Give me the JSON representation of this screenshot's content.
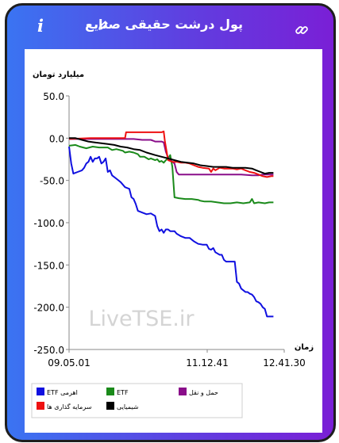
{
  "header": {
    "title": "پول درشت حقیقی صنایع",
    "info_icon": "i",
    "icons": [
      "info-icon",
      "pencil-icon",
      "link-icon"
    ]
  },
  "chart_data": {
    "type": "line",
    "ylabel": "میلیارد تومان",
    "xlabel": "زمان",
    "ylim": [
      -250,
      50
    ],
    "yticks": [
      "50.0",
      "0.0",
      "-50.0",
      "-100.0",
      "-150.0",
      "-200.0",
      "-250.0"
    ],
    "xticks": [
      "09.05.01",
      "11.12.41",
      "12.41.30"
    ],
    "x_range": [
      0,
      100
    ],
    "grid": false,
    "legend_position": "bottom",
    "watermark": "LiveTSE.ir",
    "series": [
      {
        "name": "ETF اهرمی",
        "color": "#1010e0",
        "values": [
          [
            0,
            -10
          ],
          [
            1,
            -30
          ],
          [
            2,
            -42
          ],
          [
            4,
            -40
          ],
          [
            6,
            -38
          ],
          [
            7,
            -35
          ],
          [
            8,
            -30
          ],
          [
            9,
            -28
          ],
          [
            10,
            -22
          ],
          [
            11,
            -28
          ],
          [
            12,
            -24
          ],
          [
            13,
            -24
          ],
          [
            14,
            -22
          ],
          [
            15,
            -30
          ],
          [
            16,
            -28
          ],
          [
            17,
            -24
          ],
          [
            18,
            -40
          ],
          [
            19,
            -38
          ],
          [
            20,
            -44
          ],
          [
            22,
            -48
          ],
          [
            24,
            -52
          ],
          [
            26,
            -58
          ],
          [
            28,
            -60
          ],
          [
            29,
            -70
          ],
          [
            30,
            -72
          ],
          [
            31,
            -78
          ],
          [
            32,
            -86
          ],
          [
            34,
            -88
          ],
          [
            36,
            -90
          ],
          [
            38,
            -89
          ],
          [
            40,
            -92
          ],
          [
            41,
            -104
          ],
          [
            42,
            -110
          ],
          [
            43,
            -108
          ],
          [
            44,
            -112
          ],
          [
            45,
            -108
          ],
          [
            46,
            -108
          ],
          [
            47,
            -110
          ],
          [
            49,
            -110
          ],
          [
            50,
            -113
          ],
          [
            52,
            -116
          ],
          [
            54,
            -118
          ],
          [
            56,
            -118
          ],
          [
            57,
            -120
          ],
          [
            58,
            -122
          ],
          [
            60,
            -125
          ],
          [
            62,
            -126
          ],
          [
            64,
            -126
          ],
          [
            65,
            -131
          ],
          [
            66,
            -132
          ],
          [
            67,
            -130
          ],
          [
            68,
            -135
          ],
          [
            70,
            -138
          ],
          [
            71,
            -138
          ],
          [
            72,
            -144
          ],
          [
            73,
            -146
          ],
          [
            76,
            -146
          ],
          [
            77,
            -146
          ],
          [
            78,
            -170
          ],
          [
            79,
            -172
          ],
          [
            80,
            -178
          ],
          [
            81,
            -180
          ],
          [
            82,
            -182
          ],
          [
            83,
            -182
          ],
          [
            84,
            -184
          ],
          [
            85,
            -185
          ],
          [
            86,
            -188
          ],
          [
            87,
            -193
          ],
          [
            88,
            -194
          ],
          [
            89,
            -196
          ],
          [
            90,
            -200
          ],
          [
            91,
            -202
          ],
          [
            92,
            -211
          ],
          [
            94,
            -211
          ],
          [
            95,
            -211
          ]
        ]
      },
      {
        "name": "ETF",
        "color": "#1a8a1a",
        "values": [
          [
            0,
            -9
          ],
          [
            3,
            -8
          ],
          [
            5,
            -10
          ],
          [
            8,
            -12
          ],
          [
            11,
            -10
          ],
          [
            14,
            -11
          ],
          [
            18,
            -11
          ],
          [
            20,
            -14
          ],
          [
            22,
            -13
          ],
          [
            25,
            -15
          ],
          [
            26,
            -17
          ],
          [
            28,
            -16
          ],
          [
            30,
            -17
          ],
          [
            32,
            -19
          ],
          [
            33,
            -22
          ],
          [
            35,
            -22
          ],
          [
            37,
            -25
          ],
          [
            38,
            -24
          ],
          [
            40,
            -26
          ],
          [
            41,
            -25
          ],
          [
            42,
            -28
          ],
          [
            43,
            -27
          ],
          [
            44,
            -29
          ],
          [
            45,
            -26
          ],
          [
            46,
            -24
          ],
          [
            47,
            -20
          ],
          [
            48,
            -34
          ],
          [
            49,
            -70
          ],
          [
            51,
            -71
          ],
          [
            54,
            -72
          ],
          [
            57,
            -72
          ],
          [
            60,
            -73
          ],
          [
            61,
            -74
          ],
          [
            63,
            -75
          ],
          [
            66,
            -75
          ],
          [
            69,
            -76
          ],
          [
            72,
            -77
          ],
          [
            75,
            -77
          ],
          [
            78,
            -76
          ],
          [
            81,
            -77
          ],
          [
            84,
            -76
          ],
          [
            85,
            -72
          ],
          [
            86,
            -77
          ],
          [
            88,
            -76
          ],
          [
            91,
            -77
          ],
          [
            93,
            -76
          ],
          [
            95,
            -76
          ]
        ]
      },
      {
        "name": "حمل و نقل",
        "color": "#8a0e8a",
        "values": [
          [
            0,
            -1
          ],
          [
            6,
            -1
          ],
          [
            10,
            -1
          ],
          [
            14,
            -1
          ],
          [
            18,
            -1
          ],
          [
            22,
            -1
          ],
          [
            26,
            -1
          ],
          [
            30,
            -1
          ],
          [
            34,
            -2
          ],
          [
            36,
            -2
          ],
          [
            38,
            -2
          ],
          [
            39,
            -3
          ],
          [
            40,
            -4
          ],
          [
            41,
            -4
          ],
          [
            42,
            -4
          ],
          [
            43,
            -4
          ],
          [
            44,
            -5
          ],
          [
            45,
            -16
          ],
          [
            46,
            -23
          ],
          [
            47,
            -26
          ],
          [
            48,
            -28
          ],
          [
            49,
            -30
          ],
          [
            50,
            -40
          ],
          [
            51,
            -43
          ],
          [
            55,
            -43
          ],
          [
            60,
            -43
          ],
          [
            65,
            -43
          ],
          [
            70,
            -43
          ],
          [
            75,
            -43
          ],
          [
            80,
            -43
          ],
          [
            85,
            -44
          ],
          [
            88,
            -44
          ],
          [
            90,
            -43
          ],
          [
            92,
            -43
          ],
          [
            95,
            -43
          ]
        ]
      },
      {
        "name": "سرمایه گذاری ها",
        "color": "#ee1111",
        "values": [
          [
            0,
            -1
          ],
          [
            10,
            0
          ],
          [
            20,
            0
          ],
          [
            26,
            0
          ],
          [
            26.5,
            7
          ],
          [
            30,
            7
          ],
          [
            35,
            7
          ],
          [
            40,
            7
          ],
          [
            43,
            7
          ],
          [
            44,
            8
          ],
          [
            44.5,
            -3
          ],
          [
            46,
            -26
          ],
          [
            48,
            -28
          ],
          [
            50,
            -28
          ],
          [
            52,
            -29
          ],
          [
            54,
            -29
          ],
          [
            56,
            -30
          ],
          [
            58,
            -32
          ],
          [
            60,
            -34
          ],
          [
            62,
            -35
          ],
          [
            65,
            -36
          ],
          [
            66,
            -40
          ],
          [
            67,
            -36
          ],
          [
            68,
            -38
          ],
          [
            70,
            -35
          ],
          [
            72,
            -36
          ],
          [
            74,
            -36
          ],
          [
            76,
            -36
          ],
          [
            78,
            -37
          ],
          [
            80,
            -36
          ],
          [
            82,
            -38
          ],
          [
            84,
            -40
          ],
          [
            86,
            -41
          ],
          [
            88,
            -43
          ],
          [
            90,
            -45
          ],
          [
            92,
            -46
          ],
          [
            94,
            -45
          ],
          [
            95,
            -45
          ]
        ]
      },
      {
        "name": "شیمیایی",
        "color": "#000000",
        "values": [
          [
            0,
            0
          ],
          [
            3,
            0
          ],
          [
            6,
            -2
          ],
          [
            9,
            -4
          ],
          [
            12,
            -5
          ],
          [
            15,
            -6
          ],
          [
            18,
            -7
          ],
          [
            21,
            -8
          ],
          [
            24,
            -10
          ],
          [
            27,
            -11
          ],
          [
            30,
            -13
          ],
          [
            33,
            -14
          ],
          [
            36,
            -17
          ],
          [
            40,
            -20
          ],
          [
            43,
            -22
          ],
          [
            46,
            -24
          ],
          [
            49,
            -26
          ],
          [
            52,
            -28
          ],
          [
            55,
            -29
          ],
          [
            58,
            -30
          ],
          [
            61,
            -32
          ],
          [
            64,
            -33
          ],
          [
            67,
            -34
          ],
          [
            70,
            -34
          ],
          [
            73,
            -34
          ],
          [
            76,
            -35
          ],
          [
            79,
            -35
          ],
          [
            82,
            -35
          ],
          [
            85,
            -36
          ],
          [
            87,
            -38
          ],
          [
            89,
            -40
          ],
          [
            91,
            -42
          ],
          [
            93,
            -41
          ],
          [
            95,
            -41
          ]
        ]
      }
    ]
  }
}
